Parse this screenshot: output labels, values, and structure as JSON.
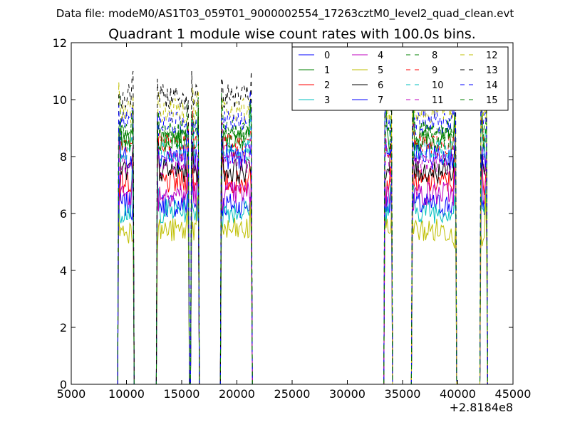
{
  "suptitle": "Data file: modeM0/AS1T03_059T01_9000002554_17263cztM0_level2_quad_clean.evt",
  "chart_data": {
    "type": "line",
    "title": "Quadrant 1 module wise count rates with 100.0s bins.",
    "xlabel": "",
    "ylabel": "",
    "xlim": [
      5000,
      45000
    ],
    "ylim": [
      0,
      12
    ],
    "x_offset_label": "+2.8184e8",
    "x_ticks": [
      5000,
      10000,
      15000,
      20000,
      25000,
      30000,
      35000,
      40000,
      45000
    ],
    "x_tick_labels": [
      "5000",
      "10000",
      "15000",
      "20000",
      "25000",
      "30000",
      "35000",
      "40000",
      "45000"
    ],
    "y_ticks": [
      0,
      2,
      4,
      6,
      8,
      10,
      12
    ],
    "y_tick_labels": [
      "0",
      "2",
      "4",
      "6",
      "8",
      "10",
      "12"
    ],
    "grid": false,
    "legend_position": "top-right",
    "legend_columns": 4,
    "bin_seconds": 100,
    "active_segments": [
      {
        "start": 9300,
        "end": 10600
      },
      {
        "start": 12800,
        "end": 15600
      },
      {
        "start": 15900,
        "end": 16500
      },
      {
        "start": 18600,
        "end": 21300
      },
      {
        "start": 33400,
        "end": 34000
      },
      {
        "start": 35900,
        "end": 39800
      },
      {
        "start": 42100,
        "end": 42600
      }
    ],
    "series": [
      {
        "name": "0",
        "color": "#0000ff",
        "style": "solid",
        "level": 6.3
      },
      {
        "name": "1",
        "color": "#008000",
        "style": "solid",
        "level": 8.6
      },
      {
        "name": "2",
        "color": "#ff0000",
        "style": "solid",
        "level": 7.1
      },
      {
        "name": "3",
        "color": "#00bfbf",
        "style": "solid",
        "level": 6.1
      },
      {
        "name": "4",
        "color": "#bf00bf",
        "style": "solid",
        "level": 6.7
      },
      {
        "name": "5",
        "color": "#bfbf00",
        "style": "solid",
        "level": 5.4
      },
      {
        "name": "6",
        "color": "#000000",
        "style": "solid",
        "level": 7.5
      },
      {
        "name": "7",
        "color": "#0000ff",
        "style": "solid",
        "level": 8.0
      },
      {
        "name": "8",
        "color": "#008000",
        "style": "dashed",
        "level": 8.9
      },
      {
        "name": "9",
        "color": "#ff0000",
        "style": "dashed",
        "level": 8.4
      },
      {
        "name": "10",
        "color": "#00bfbf",
        "style": "dashed",
        "level": 8.2
      },
      {
        "name": "11",
        "color": "#bf00bf",
        "style": "dashed",
        "level": 7.8
      },
      {
        "name": "12",
        "color": "#bfbf00",
        "style": "dashed",
        "level": 9.6
      },
      {
        "name": "13",
        "color": "#000000",
        "style": "dashed",
        "level": 10.1
      },
      {
        "name": "14",
        "color": "#0000ff",
        "style": "dashed",
        "level": 9.2
      },
      {
        "name": "15",
        "color": "#008000",
        "style": "dashed",
        "level": 8.7
      }
    ]
  }
}
